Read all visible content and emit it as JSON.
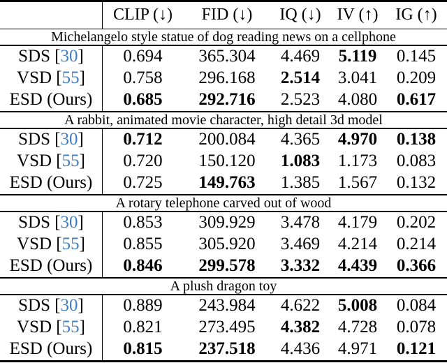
{
  "colors": {
    "background": "#ffffff",
    "text": "#000000",
    "rule": "#000000",
    "citation_blue": "#3e7dc0"
  },
  "table": {
    "header": {
      "corner": "",
      "columns": [
        "CLIP (↓)",
        "FID (↓)",
        "IQ (↓)",
        "IV (↑)",
        "IG (↑)"
      ]
    },
    "sections": [
      {
        "title": "Michelangelo style statue of dog reading news on a cellphone",
        "rows": [
          {
            "method": "SDS [",
            "cite": "30",
            "close": "]",
            "values": [
              "0.694",
              "365.304",
              "4.469",
              "5.119",
              "0.145"
            ],
            "bold": [
              false,
              false,
              false,
              true,
              false
            ]
          },
          {
            "method": "VSD [",
            "cite": "55",
            "close": "]",
            "values": [
              "0.758",
              "296.168",
              "2.514",
              "3.041",
              "0.209"
            ],
            "bold": [
              false,
              false,
              true,
              false,
              false
            ]
          },
          {
            "method": "ESD (Ours)",
            "values": [
              "0.685",
              "292.716",
              "2.523",
              "4.080",
              "0.617"
            ],
            "bold": [
              true,
              true,
              false,
              false,
              true
            ]
          }
        ]
      },
      {
        "title": "A rabbit, animated movie character, high detail 3d model",
        "rows": [
          {
            "method": "SDS [",
            "cite": "30",
            "close": "]",
            "values": [
              "0.712",
              "200.084",
              "4.365",
              "4.970",
              "0.138"
            ],
            "bold": [
              true,
              false,
              false,
              true,
              true
            ]
          },
          {
            "method": "VSD [",
            "cite": "55",
            "close": "]",
            "values": [
              "0.720",
              "150.120",
              "1.083",
              "1.173",
              "0.083"
            ],
            "bold": [
              false,
              false,
              true,
              false,
              false
            ]
          },
          {
            "method": "ESD (Ours)",
            "values": [
              "0.725",
              "149.763",
              "1.385",
              "1.567",
              "0.132"
            ],
            "bold": [
              false,
              true,
              false,
              false,
              false
            ]
          }
        ]
      },
      {
        "title": "A rotary telephone carved out of wood",
        "rows": [
          {
            "method": "SDS [",
            "cite": "30",
            "close": "]",
            "values": [
              "0.853",
              "309.929",
              "3.478",
              "4.179",
              "0.202"
            ],
            "bold": [
              false,
              false,
              false,
              false,
              false
            ]
          },
          {
            "method": "VSD [",
            "cite": "55",
            "close": "]",
            "values": [
              "0.855",
              "305.920",
              "3.469",
              "4.214",
              "0.214"
            ],
            "bold": [
              false,
              false,
              false,
              false,
              false
            ]
          },
          {
            "method": "ESD (Ours)",
            "values": [
              "0.846",
              "299.578",
              "3.332",
              "4.439",
              "0.366"
            ],
            "bold": [
              true,
              true,
              true,
              true,
              true
            ]
          }
        ]
      },
      {
        "title": "A plush dragon toy",
        "rows": [
          {
            "method": "SDS [",
            "cite": "30",
            "close": "]",
            "values": [
              "0.889",
              "243.984",
              "4.622",
              "5.008",
              "0.084"
            ],
            "bold": [
              false,
              false,
              false,
              true,
              false
            ]
          },
          {
            "method": "VSD [",
            "cite": "55",
            "close": "]",
            "values": [
              "0.821",
              "273.495",
              "4.382",
              "4.728",
              "0.078"
            ],
            "bold": [
              false,
              false,
              true,
              false,
              false
            ]
          },
          {
            "method": "ESD (Ours)",
            "values": [
              "0.815",
              "237.518",
              "4.436",
              "4.971",
              "0.121"
            ],
            "bold": [
              true,
              true,
              false,
              false,
              true
            ]
          }
        ]
      }
    ]
  }
}
